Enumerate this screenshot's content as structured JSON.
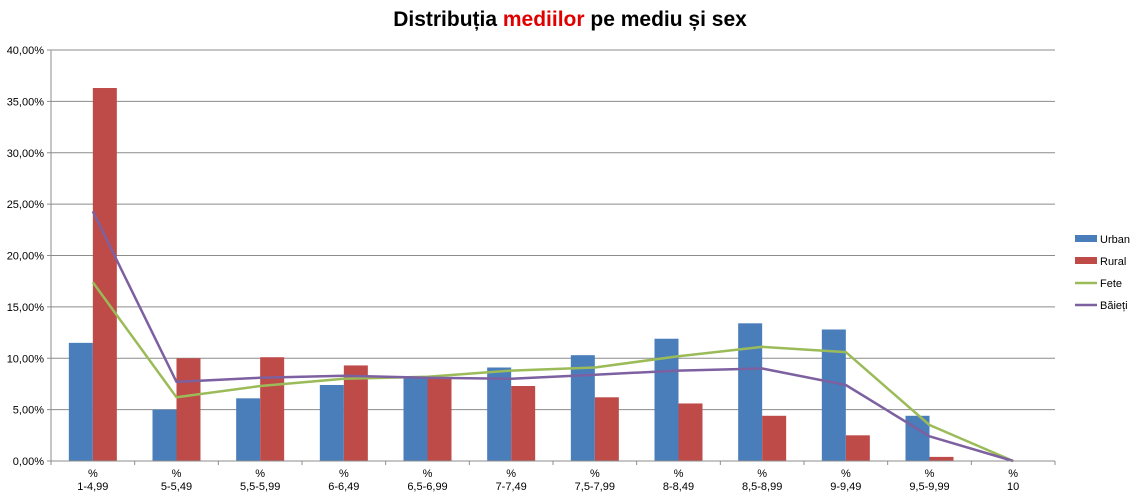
{
  "chart_data": {
    "type": "bar",
    "title_parts": [
      "Distribuția ",
      "mediilor",
      " pe mediu și sex"
    ],
    "title_highlight_color": "#e00000",
    "xlabel": "",
    "ylabel": "",
    "ylim": [
      0,
      40
    ],
    "yticks": [
      0,
      5,
      10,
      15,
      20,
      25,
      30,
      35,
      40
    ],
    "ytick_labels": [
      "0,00%",
      "5,00%",
      "10,00%",
      "15,00%",
      "20,00%",
      "25,00%",
      "30,00%",
      "35,00%",
      "40,00%"
    ],
    "grid": true,
    "legend_position": "right",
    "categories": [
      [
        "%",
        "1-4,99"
      ],
      [
        "%",
        "5-5,49"
      ],
      [
        "%",
        "5,5-5,99"
      ],
      [
        "%",
        "6-6,49"
      ],
      [
        "%",
        "6,5-6,99"
      ],
      [
        "%",
        "7-7,49"
      ],
      [
        "%",
        "7,5-7,99"
      ],
      [
        "%",
        "8-8,49"
      ],
      [
        "%",
        "8,5-8,99"
      ],
      [
        "%",
        "9-9,49"
      ],
      [
        "%",
        "9,5-9,99"
      ],
      [
        "%",
        "10"
      ]
    ],
    "bar_series": [
      {
        "name": "Urban",
        "color": "#4a7ebb",
        "values": [
          11.5,
          5.0,
          6.1,
          7.4,
          8.2,
          9.1,
          10.3,
          11.9,
          13.4,
          12.8,
          4.4,
          0.0
        ]
      },
      {
        "name": "Rural",
        "color": "#be4b48",
        "values": [
          36.3,
          10.0,
          10.1,
          9.3,
          8.0,
          7.3,
          6.2,
          5.6,
          4.4,
          2.5,
          0.4,
          0.0
        ]
      }
    ],
    "line_series": [
      {
        "name": "Fete",
        "color": "#9bbb59",
        "values": [
          17.4,
          6.2,
          7.3,
          8.0,
          8.2,
          8.8,
          9.1,
          10.2,
          11.1,
          10.6,
          3.5,
          0.0
        ]
      },
      {
        "name": "Băieți",
        "color": "#7d60a0",
        "values": [
          24.3,
          7.7,
          8.1,
          8.3,
          8.1,
          8.0,
          8.4,
          8.8,
          9.0,
          7.4,
          2.4,
          0.0
        ]
      }
    ]
  }
}
